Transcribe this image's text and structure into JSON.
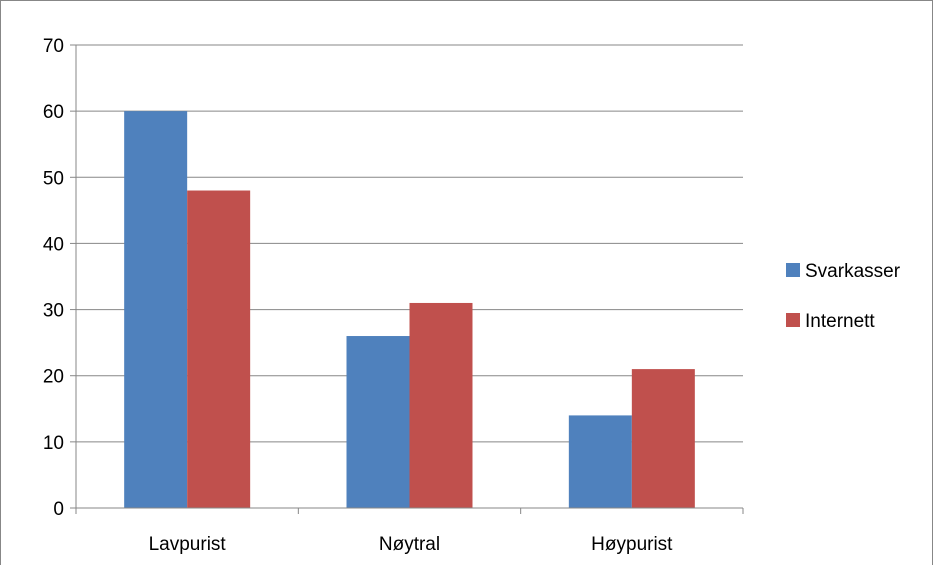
{
  "chart_data": {
    "type": "bar",
    "title": "",
    "xlabel": "",
    "ylabel": "",
    "categories": [
      "Lavpurist",
      "Nøytral",
      "Høypurist"
    ],
    "series": [
      {
        "name": "Svarkasser",
        "values": [
          60,
          26,
          14
        ],
        "color": "#4f81bd"
      },
      {
        "name": "Internett",
        "values": [
          48,
          31,
          21
        ],
        "color": "#c0504d"
      }
    ],
    "ylim": [
      0,
      70
    ],
    "yticks": [
      0,
      10,
      20,
      30,
      40,
      50,
      60,
      70
    ],
    "grid": true,
    "legend_position": "right",
    "gridline_color": "#878787"
  }
}
